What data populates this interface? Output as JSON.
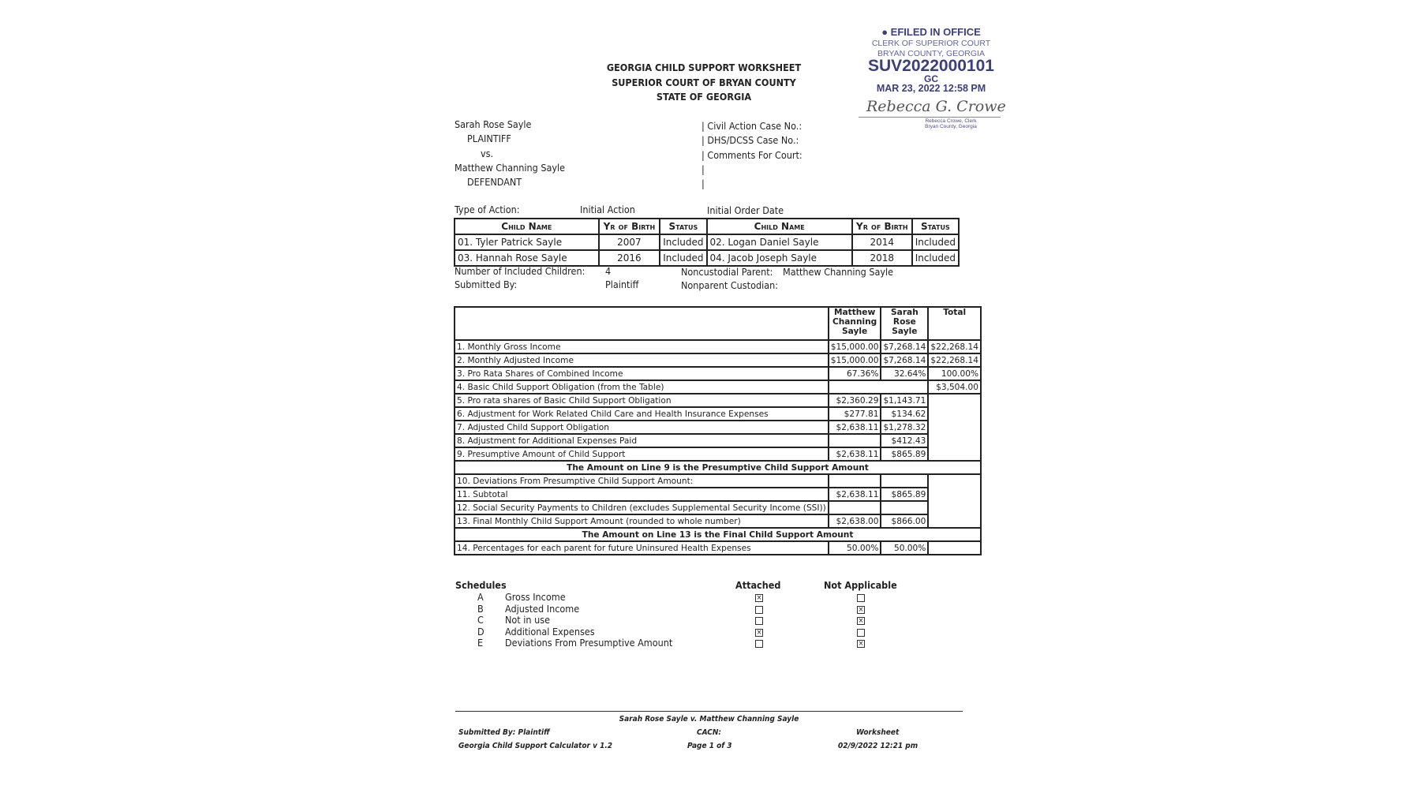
{
  "stamp": {
    "line1": "EFILED IN OFFICE",
    "line2": "CLERK OF SUPERIOR COURT",
    "line3": "BRYAN COUNTY, GEORGIA",
    "case_number": "SUV2022000101",
    "code": "GC",
    "datetime": "MAR 23, 2022 12:58 PM",
    "signature": "Rebecca G. Crowe",
    "clerk_name": "Rebecca Crowe, Clerk",
    "clerk_county": "Bryan County, Georgia",
    "color": "#3b3f7d"
  },
  "header": {
    "title1": "GEORGIA CHILD SUPPORT WORKSHEET",
    "title2": "SUPERIOR COURT OF BRYAN COUNTY",
    "title3": "STATE OF GEORGIA"
  },
  "parties": {
    "plaintiff_name": "Sarah Rose Sayle",
    "plaintiff_label": "PLAINTIFF",
    "vs": "vs.",
    "defendant_name": "Matthew Channing Sayle",
    "defendant_label": "DEFENDANT",
    "civil_action": "| Civil Action Case No.:",
    "dhs_case": "| DHS/DCSS Case No.:",
    "comments": "| Comments For Court:",
    "pipe": "|"
  },
  "action": {
    "type_label": "Type of Action:",
    "type_value": "Initial Action",
    "order_date_label": "Initial Order Date"
  },
  "children": {
    "headers": [
      "Child Name",
      "Yr of Birth",
      "Status",
      "Child Name",
      "Yr of Birth",
      "Status"
    ],
    "rows": [
      [
        "01. Tyler Patrick Sayle",
        "2007",
        "Included",
        "02. Logan Daniel Sayle",
        "2014",
        "Included"
      ],
      [
        "03. Hannah Rose Sayle",
        "2016",
        "Included",
        "04. Jacob Joseph Sayle",
        "2018",
        "Included"
      ]
    ]
  },
  "summary": {
    "num_children_label": "Number of Included Children:",
    "num_children_value": "4",
    "submitted_label": "Submitted By:",
    "submitted_value": "Plaintiff",
    "noncustodial_label": "Noncustodial Parent:",
    "noncustodial_value": "Matthew Channing Sayle",
    "nonparent_label": "Nonparent Custodian:"
  },
  "worksheet": {
    "col_father": "Matthew Channing Sayle",
    "col_mother": "Sarah Rose Sayle",
    "col_total": "Total",
    "rows": [
      [
        "1. Monthly Gross Income",
        "$15,000.00",
        "$7,268.14",
        "$22,268.14"
      ],
      [
        "2. Monthly Adjusted Income",
        "$15,000.00",
        "$7,268.14",
        "$22,268.14"
      ],
      [
        "3. Pro Rata Shares of Combined Income",
        "67.36%",
        "32.64%",
        "100.00%"
      ],
      [
        "4. Basic Child Support Obligation (from the Table)",
        "",
        "",
        "$3,504.00"
      ],
      [
        "5. Pro rata shares of Basic Child Support Obligation",
        "$2,360.29",
        "$1,143.71",
        ""
      ],
      [
        "6. Adjustment for Work Related Child Care and Health Insurance Expenses",
        "$277.81",
        "$134.62",
        ""
      ],
      [
        "7. Adjusted Child Support Obligation",
        "$2,638.11",
        "$1,278.32",
        ""
      ],
      [
        "8. Adjustment for Additional Expenses Paid",
        "",
        "$412.43",
        ""
      ],
      [
        "9. Presumptive Amount of Child Support",
        "$2,638.11",
        "$865.89",
        ""
      ],
      [
        "10. Deviations From Presumptive Child Support Amount:",
        "",
        "",
        ""
      ],
      [
        "11. Subtotal",
        "$2,638.11",
        "$865.89",
        ""
      ],
      [
        "12. Social Security Payments to Children (excludes Supplemental Security Income (SSI))",
        "",
        "",
        ""
      ],
      [
        "13. Final Monthly Child Support Amount (rounded to whole number)",
        "$2,638.00",
        "$866.00",
        ""
      ],
      [
        "14. Percentages for each parent for future Uninsured Health Expenses",
        "50.00%",
        "50.00%",
        ""
      ]
    ],
    "banner9": "The Amount on Line 9 is the Presumptive Child Support Amount",
    "banner13": "The Amount on Line 13 is the Final Child Support Amount"
  },
  "schedules": {
    "title": "Schedules",
    "attached_label": "Attached",
    "na_label": "Not Applicable",
    "items": [
      {
        "letter": "A",
        "name": "Gross Income",
        "attached": true,
        "na": false
      },
      {
        "letter": "B",
        "name": "Adjusted Income",
        "attached": false,
        "na": true
      },
      {
        "letter": "C",
        "name": "Not in use",
        "attached": false,
        "na": true
      },
      {
        "letter": "D",
        "name": "Additional Expenses",
        "attached": true,
        "na": false
      },
      {
        "letter": "E",
        "name": "Deviations From Presumptive Amount",
        "attached": false,
        "na": true
      }
    ]
  },
  "footer": {
    "caption": "Sarah Rose Sayle v. Matthew Channing Sayle",
    "submitted": "Submitted By: Plaintiff",
    "cacn": "CACN:",
    "doc_type": "Worksheet",
    "calculator": "Georgia Child Support Calculator v 1.2",
    "page": "Page 1 of 3",
    "datetime": "02/9/2022 12:21 pm"
  }
}
